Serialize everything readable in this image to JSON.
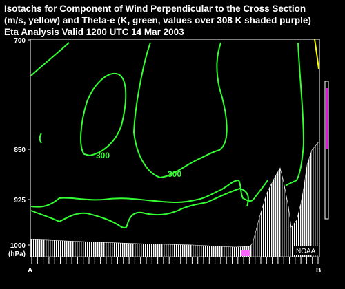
{
  "title": {
    "line1": "Isotachs for Component of Wind Perpendicular to the Cross Section",
    "line2": "(m/s, yellow) and Theta-e (K, green, values over 308 K shaded purple)",
    "line3": "Eta Analysis Valid 1200 UTC  14 Mar 2003"
  },
  "y_axis": {
    "ticks": [
      "700",
      "850",
      "925",
      "1000"
    ],
    "unit": "(hPa)"
  },
  "x_axis": {
    "left": "A",
    "right": "B"
  },
  "contour_labels": [
    "300",
    "300"
  ],
  "logo": "NOAA",
  "colors": {
    "theta_e": "#33ff33",
    "isotach": "#ffff00",
    "shade": "#ff33ff",
    "terrain": "#ffffff",
    "background": "#000000"
  }
}
